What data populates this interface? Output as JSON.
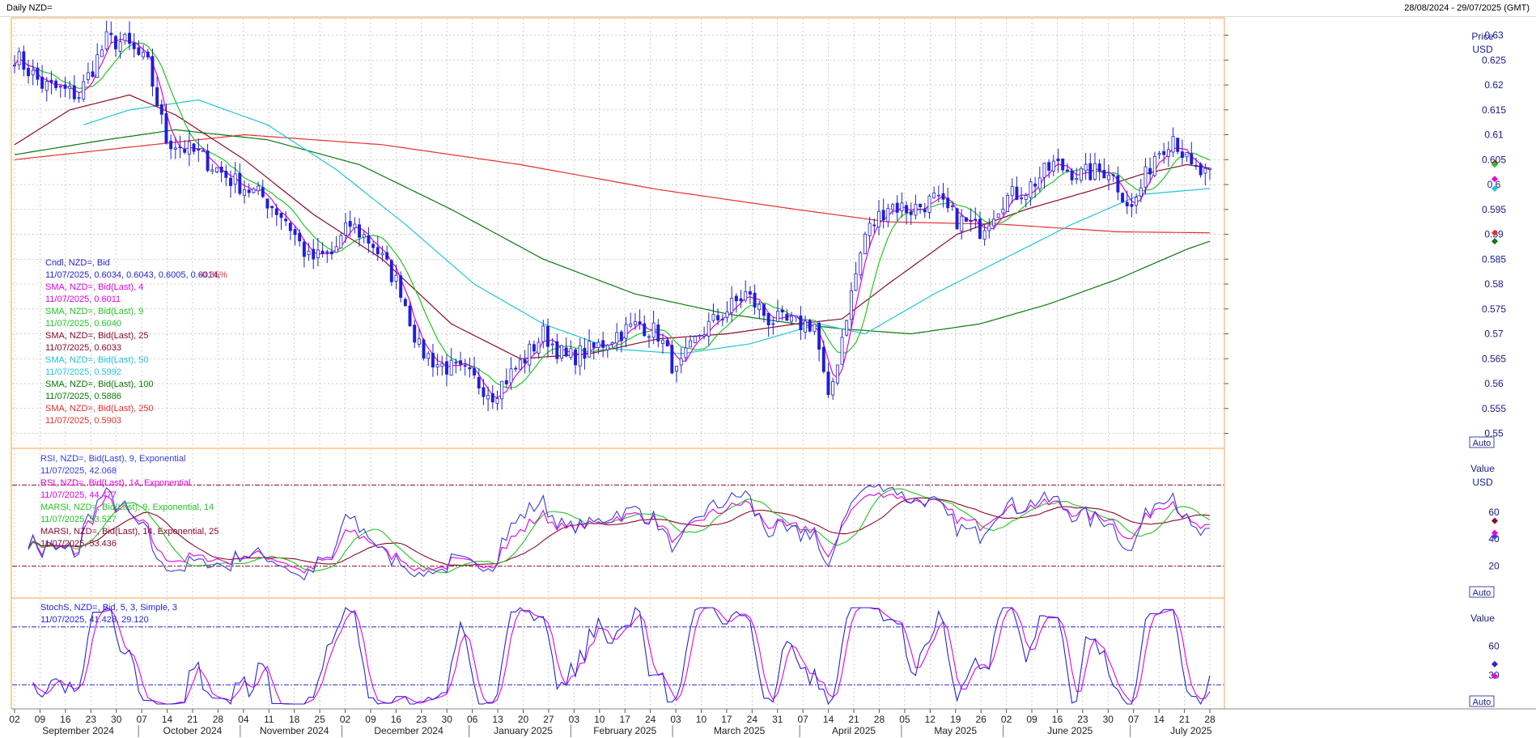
{
  "window": {
    "title": "Daily NZD=",
    "date_range": "28/08/2024 - 29/07/2025 (GMT)"
  },
  "colors": {
    "candles": "#1f1fd8",
    "sma4": "#e600e6",
    "sma9": "#22c722",
    "sma25": "#8b0a2a",
    "sma50": "#22c7d8",
    "sma100": "#0a7a0a",
    "sma250": "#e83030",
    "rsi9": "#3a3ae0",
    "rsi14": "#e600e6",
    "marsi9": "#22c722",
    "marsi14": "#8b0a2a",
    "stoch_k": "#2424d8",
    "stoch_d": "#e600e6",
    "grid": "#b0b0b0",
    "panel_border": "#ffa040"
  },
  "price_panel": {
    "axis_title_1": "Price",
    "axis_title_2": "USD",
    "auto_label": "Auto",
    "legend": [
      {
        "label": "Cndl, NZD=, Bid",
        "value": "11/07/2025, 0.6034, 0.6043, 0.6005, 0.6014,",
        "change": "-0.35%",
        "color": "#1f1fd8"
      },
      {
        "label": "SMA, NZD=, Bid(Last), 4",
        "value": "11/07/2025, 0.6011",
        "color": "#e600e6"
      },
      {
        "label": "SMA, NZD=, Bid(Last), 9",
        "value": "11/07/2025, 0.6040",
        "color": "#22c722"
      },
      {
        "label": "SMA, NZD=, Bid(Last), 25",
        "value": "11/07/2025, 0.6033",
        "color": "#8b0a2a"
      },
      {
        "label": "SMA, NZD=, Bid(Last), 50",
        "value": "11/07/2025, 0.5992",
        "color": "#22c7d8"
      },
      {
        "label": "SMA, NZD=, Bid(Last), 100",
        "value": "11/07/2025, 0.5886",
        "color": "#0a7a0a"
      },
      {
        "label": "SMA, NZD=, Bid(Last), 250",
        "value": "11/07/2025, 0.5903",
        "color": "#e83030"
      }
    ]
  },
  "rsi_panel": {
    "axis_title": "Value",
    "axis_unit": "USD",
    "auto_label": "Auto",
    "legend": [
      {
        "label": "RSI, NZD=, Bid(Last), 9, Exponential",
        "value": "11/07/2025, 42.068",
        "color": "#3a3ae0"
      },
      {
        "label": "RSI, NZD=, Bid(Last), 14, Exponential",
        "value": "11/07/2025, 44.477",
        "color": "#e600e6"
      },
      {
        "label": "MARSI, NZD=, Bid(Last), 9, Exponential, 14",
        "value": "11/07/2025, 53.527",
        "color": "#22c722"
      },
      {
        "label": "MARSI, NZD=, Bid(Last), 14, Exponential, 25",
        "value": "11/07/2025, 53.436",
        "color": "#8b0a2a"
      }
    ]
  },
  "stoch_panel": {
    "axis_title": "Value",
    "auto_label": "Auto",
    "legend": [
      {
        "label": "StochS, NZD=, Bid, 5, 3, Simple, 3",
        "value": "11/07/2025, 41.428, 29.120",
        "color": "#2424d8"
      }
    ]
  },
  "chart_data": {
    "type": "candlestick",
    "title": "Daily NZD=",
    "x_axis": {
      "day_ticks": [
        "02",
        "09",
        "16",
        "23",
        "30",
        "07",
        "14",
        "21",
        "28",
        "04",
        "11",
        "18",
        "25",
        "02",
        "09",
        "16",
        "23",
        "30",
        "06",
        "13",
        "20",
        "27",
        "03",
        "10",
        "17",
        "24",
        "03",
        "10",
        "17",
        "24",
        "31",
        "07",
        "14",
        "21",
        "28",
        "05",
        "12",
        "19",
        "26",
        "02",
        "09",
        "16",
        "23",
        "30",
        "07",
        "14",
        "21",
        "28"
      ],
      "months": [
        "September 2024",
        "October 2024",
        "November 2024",
        "December 2024",
        "January 2025",
        "February 2025",
        "March 2025",
        "April 2025",
        "May 2025",
        "June 2025",
        "July 2025"
      ]
    },
    "price_axis": {
      "ticks": [
        0.63,
        0.625,
        0.62,
        0.615,
        0.61,
        0.605,
        0.6,
        0.595,
        0.59,
        0.585,
        0.58,
        0.575,
        0.57,
        0.565,
        0.56,
        0.555,
        0.55
      ],
      "ylim": [
        0.547,
        0.6335
      ]
    },
    "rsi_axis": {
      "ticks": [
        60,
        40,
        20
      ],
      "ylim": [
        0,
        100
      ],
      "ref_lines": [
        80,
        20
      ]
    },
    "stoch_axis": {
      "ticks": [
        60,
        30
      ],
      "ylim": [
        0,
        100
      ],
      "ref_lines": [
        80,
        20
      ]
    },
    "close_series_keypoints": [
      [
        0,
        0.626
      ],
      [
        6,
        0.62
      ],
      [
        14,
        0.618
      ],
      [
        20,
        0.629
      ],
      [
        24,
        0.6285
      ],
      [
        29,
        0.624
      ],
      [
        33,
        0.609
      ],
      [
        40,
        0.606
      ],
      [
        47,
        0.601
      ],
      [
        54,
        0.5975
      ],
      [
        59,
        0.593
      ],
      [
        64,
        0.585
      ],
      [
        69,
        0.586
      ],
      [
        73,
        0.592
      ],
      [
        78,
        0.588
      ],
      [
        84,
        0.579
      ],
      [
        88,
        0.567
      ],
      [
        92,
        0.564
      ],
      [
        98,
        0.562
      ],
      [
        104,
        0.558
      ],
      [
        110,
        0.564
      ],
      [
        115,
        0.57
      ],
      [
        120,
        0.565
      ],
      [
        126,
        0.567
      ],
      [
        131,
        0.57
      ],
      [
        136,
        0.572
      ],
      [
        140,
        0.57
      ],
      [
        144,
        0.562
      ],
      [
        149,
        0.57
      ],
      [
        154,
        0.574
      ],
      [
        159,
        0.578
      ],
      [
        164,
        0.573
      ],
      [
        169,
        0.572
      ],
      [
        174,
        0.572
      ],
      [
        177,
        0.556
      ],
      [
        181,
        0.574
      ],
      [
        185,
        0.59
      ],
      [
        190,
        0.596
      ],
      [
        195,
        0.595
      ],
      [
        200,
        0.597
      ],
      [
        205,
        0.593
      ],
      [
        210,
        0.591
      ],
      [
        215,
        0.597
      ],
      [
        220,
        0.599
      ],
      [
        226,
        0.604
      ],
      [
        232,
        0.602
      ],
      [
        238,
        0.603
      ],
      [
        243,
        0.595
      ],
      [
        248,
        0.606
      ],
      [
        252,
        0.61
      ],
      [
        256,
        0.603
      ],
      [
        260,
        0.6014
      ]
    ],
    "moving_average_keypoints": {
      "sma25": [
        [
          0,
          0.608
        ],
        [
          12,
          0.615
        ],
        [
          25,
          0.618
        ],
        [
          35,
          0.614
        ],
        [
          50,
          0.605
        ],
        [
          65,
          0.594
        ],
        [
          80,
          0.585
        ],
        [
          95,
          0.572
        ],
        [
          110,
          0.565
        ],
        [
          125,
          0.566
        ],
        [
          140,
          0.569
        ],
        [
          155,
          0.57
        ],
        [
          170,
          0.572
        ],
        [
          180,
          0.573
        ],
        [
          190,
          0.58
        ],
        [
          205,
          0.59
        ],
        [
          220,
          0.595
        ],
        [
          235,
          0.599
        ],
        [
          245,
          0.602
        ],
        [
          255,
          0.604
        ],
        [
          260,
          0.6033
        ]
      ],
      "sma50": [
        [
          15,
          0.612
        ],
        [
          25,
          0.615
        ],
        [
          40,
          0.617
        ],
        [
          55,
          0.612
        ],
        [
          70,
          0.603
        ],
        [
          85,
          0.592
        ],
        [
          100,
          0.58
        ],
        [
          115,
          0.572
        ],
        [
          130,
          0.567
        ],
        [
          145,
          0.566
        ],
        [
          160,
          0.568
        ],
        [
          175,
          0.572
        ],
        [
          185,
          0.57
        ],
        [
          200,
          0.578
        ],
        [
          215,
          0.585
        ],
        [
          230,
          0.592
        ],
        [
          245,
          0.598
        ],
        [
          260,
          0.5992
        ]
      ],
      "sma100": [
        [
          0,
          0.606
        ],
        [
          20,
          0.609
        ],
        [
          35,
          0.611
        ],
        [
          55,
          0.609
        ],
        [
          75,
          0.604
        ],
        [
          95,
          0.595
        ],
        [
          115,
          0.585
        ],
        [
          135,
          0.578
        ],
        [
          155,
          0.574
        ],
        [
          170,
          0.572
        ],
        [
          180,
          0.571
        ],
        [
          195,
          0.57
        ],
        [
          210,
          0.572
        ],
        [
          225,
          0.576
        ],
        [
          240,
          0.581
        ],
        [
          255,
          0.587
        ],
        [
          260,
          0.5886
        ]
      ],
      "sma250": [
        [
          0,
          0.605
        ],
        [
          30,
          0.608
        ],
        [
          50,
          0.61
        ],
        [
          80,
          0.608
        ],
        [
          110,
          0.604
        ],
        [
          140,
          0.599
        ],
        [
          170,
          0.595
        ],
        [
          190,
          0.5925
        ],
        [
          215,
          0.592
        ],
        [
          240,
          0.5905
        ],
        [
          260,
          0.5903
        ]
      ]
    }
  }
}
